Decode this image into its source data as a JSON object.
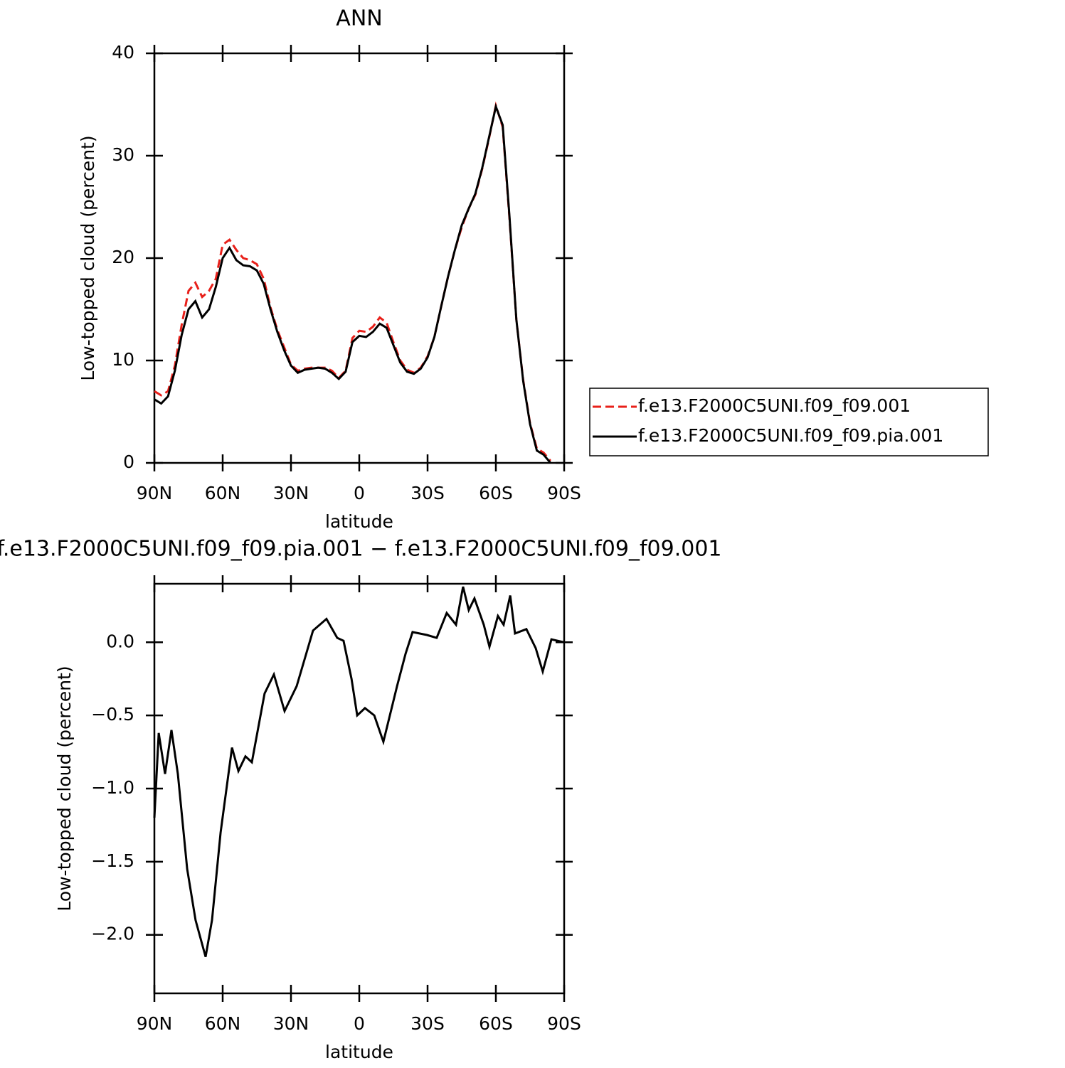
{
  "chart_data": [
    {
      "type": "line",
      "title": "ANN",
      "x_label": "latitude",
      "y_label": "Low-topped cloud (percent)",
      "x": [
        90,
        87,
        84,
        81,
        78,
        75,
        72,
        69,
        66,
        63,
        60,
        57,
        54,
        51,
        48,
        45,
        42,
        39,
        36,
        33,
        30,
        27,
        24,
        21,
        18,
        15,
        12,
        9,
        6,
        3,
        0,
        -3,
        -6,
        -9,
        -12,
        -15,
        -18,
        -21,
        -24,
        -27,
        -30,
        -33,
        -36,
        -39,
        -42,
        -45,
        -48,
        -51,
        -54,
        -57,
        -60,
        -63,
        -66,
        -69,
        -72,
        -75,
        -78,
        -81,
        -84,
        -87,
        -90
      ],
      "series": [
        {
          "name": "f.e13.F2000C5UNI.f09_f09.001",
          "color": "#e8201a",
          "line_style": "dashed",
          "values": [
            7,
            6.6,
            7,
            9.5,
            13.5,
            16.8,
            17.6,
            16.2,
            16.8,
            18,
            21.3,
            21.8,
            20.8,
            20,
            19.8,
            19.4,
            18,
            15.2,
            13,
            11.3,
            9.6,
            9,
            9.2,
            9.3,
            9.3,
            9.3,
            9,
            8.3,
            9,
            12.2,
            12.9,
            12.8,
            13.3,
            14.2,
            13.7,
            11.8,
            10,
            9.1,
            8.8,
            9.3,
            10.4,
            12.3,
            15.3,
            18.2,
            20.8,
            23,
            24.8,
            26.2,
            28.7,
            31.7,
            34.9,
            32.8,
            23.8,
            14,
            8.1,
            3.9,
            1.4,
            1,
            0.2,
            null,
            null
          ]
        },
        {
          "name": "f.e13.F2000C5UNI.f09_f09.pia.001",
          "color": "#000000",
          "line_style": "solid",
          "values": [
            6.2,
            5.8,
            6.5,
            9,
            12.5,
            15,
            15.8,
            14.2,
            15,
            17.2,
            20,
            21,
            19.8,
            19.3,
            19.2,
            18.8,
            17.5,
            15,
            12.8,
            11,
            9.5,
            8.8,
            9.1,
            9.2,
            9.3,
            9.2,
            8.8,
            8.2,
            8.9,
            11.8,
            12.4,
            12.3,
            12.8,
            13.6,
            13.2,
            11.5,
            9.8,
            8.9,
            8.7,
            9.2,
            10.3,
            12.3,
            15.3,
            18.2,
            20.8,
            23.2,
            24.8,
            26.3,
            28.8,
            31.8,
            34.8,
            33,
            24,
            14,
            8,
            3.8,
            1.2,
            0.8,
            0,
            null,
            null
          ]
        }
      ],
      "xlim": [
        90,
        -90
      ],
      "xticks": [
        {
          "value": 90,
          "label": "90N"
        },
        {
          "value": 60,
          "label": "60N"
        },
        {
          "value": 30,
          "label": "30N"
        },
        0,
        {
          "value": -30,
          "label": "30S"
        },
        {
          "value": -60,
          "label": "60S"
        },
        {
          "value": -90,
          "label": "90S"
        }
      ],
      "ylim": [
        0,
        40
      ],
      "yticks": [
        0,
        10,
        20,
        30,
        40
      ],
      "legend": "right"
    },
    {
      "type": "line",
      "title": "f.e13.F2000C5UNI.f09_f09.pia.001 − f.e13.F2000C5UNI.f09_f09.001",
      "x_label": "latitude",
      "y_label": "Low-topped cloud (percent)",
      "x": [
        90,
        88.1,
        85.3,
        82.5,
        79.7,
        75.6,
        71.9,
        67.5,
        64.7,
        60.9,
        55.9,
        53.1,
        50,
        47.2,
        41.6,
        37.5,
        32.8,
        27.5,
        24.1,
        20.3,
        14.4,
        9.7,
        6.9,
        3.4,
        0.9,
        -2.5,
        -6.6,
        -10.6,
        -16.6,
        -20.3,
        -23.4,
        -29.7,
        -34,
        -38.4,
        -42.5,
        -45.6,
        -48.1,
        -50.6,
        -54.7,
        -57.2,
        -60.9,
        -63.4,
        -66.3,
        -68.4,
        -73.4,
        -77.5,
        -80.6,
        -84.4,
        -90
      ],
      "series": [
        {
          "color": "#000000",
          "line_style": "solid",
          "values": [
            -1.2,
            -0.62,
            -0.9,
            -0.6,
            -0.9,
            -1.55,
            -1.9,
            -2.15,
            -1.9,
            -1.3,
            -0.72,
            -0.88,
            -0.78,
            -0.82,
            -0.35,
            -0.22,
            -0.47,
            -0.3,
            -0.12,
            0.08,
            0.16,
            0.03,
            0.01,
            -0.25,
            -0.5,
            -0.45,
            -0.5,
            -0.68,
            -0.3,
            -0.08,
            0.07,
            0.05,
            0.03,
            0.2,
            0.12,
            0.38,
            0.22,
            0.3,
            0.12,
            -0.03,
            0.18,
            0.12,
            0.32,
            0.06,
            0.09,
            -0.04,
            -0.2,
            0.02,
            0
          ]
        }
      ],
      "xlim": [
        90,
        -90
      ],
      "xticks": [
        {
          "value": 90,
          "label": "90N"
        },
        {
          "value": 60,
          "label": "60N"
        },
        {
          "value": 30,
          "label": "30N"
        },
        0,
        {
          "value": -30,
          "label": "30S"
        },
        {
          "value": -60,
          "label": "60S"
        },
        {
          "value": -90,
          "label": "90S"
        }
      ],
      "ylim": [
        -2.4,
        0.4
      ],
      "yticks": [
        {
          "value": -2,
          "label": "−2.0"
        },
        {
          "value": -1.5,
          "label": "−1.5"
        },
        {
          "value": -1,
          "label": "−1.0"
        },
        {
          "value": -0.5,
          "label": "−0.5"
        },
        {
          "value": 0,
          "label": "0.0"
        }
      ]
    }
  ]
}
